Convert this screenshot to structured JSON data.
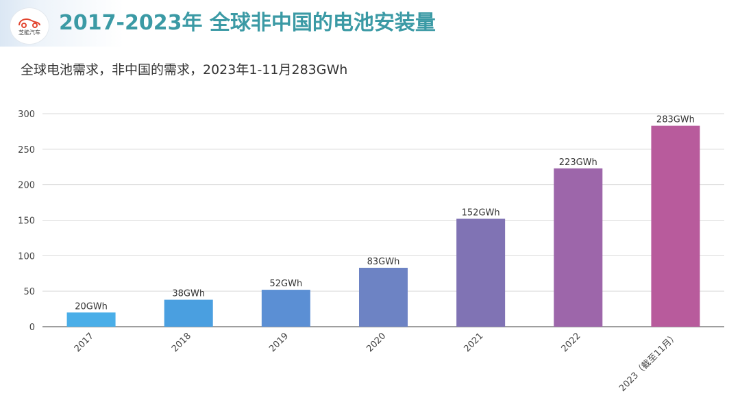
{
  "header": {
    "logo_text": "芝能汽车",
    "title": "2017-2023年 全球非中国的电池安装量"
  },
  "subtitle": "全球电池需求，非中国的需求，2023年1-11月283GWh",
  "chart_data": {
    "type": "bar",
    "title": "",
    "xlabel": "",
    "ylabel": "",
    "ylim": [
      0,
      300
    ],
    "yticks": [
      0,
      50,
      100,
      150,
      200,
      250,
      300
    ],
    "grid": true,
    "categories": [
      "2017",
      "2018",
      "2019",
      "2020",
      "2021",
      "2022",
      "2023（截至11月）"
    ],
    "values": [
      20,
      38,
      52,
      83,
      152,
      223,
      283
    ],
    "data_labels": [
      "20GWh",
      "38GWh",
      "52GWh",
      "83GWh",
      "152GWh",
      "223GWh",
      "283GWh"
    ],
    "colors": [
      "#4aaee8",
      "#4a9fe0",
      "#5b8fd4",
      "#6d83c4",
      "#8073b4",
      "#9d66aa",
      "#b85b9c"
    ]
  }
}
